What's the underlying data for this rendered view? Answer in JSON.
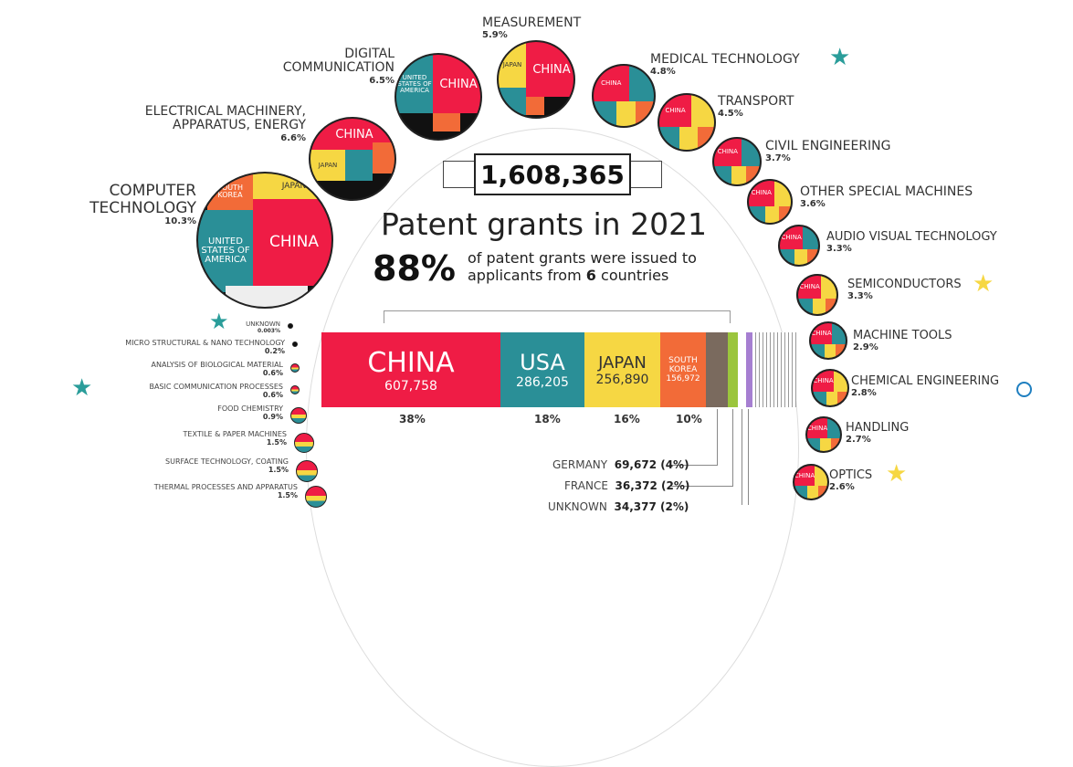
{
  "header": {
    "total": "1,608,365",
    "title": "Patent grants in 2021",
    "share": "88%",
    "subtitle_pre": "of patent grants were issued to",
    "subtitle_line2_pre": "applicants from",
    "subtitle_count": "6",
    "subtitle_post": "countries"
  },
  "bar": [
    {
      "name": "CHINA",
      "value": "607,758",
      "pct": "38%",
      "color": "#ef1c45"
    },
    {
      "name": "USA",
      "value": "286,205",
      "pct": "18%",
      "color": "#2a8f97"
    },
    {
      "name": "JAPAN",
      "value": "256,890",
      "pct": "16%",
      "color": "#f6d743"
    },
    {
      "name": "SOUTH KOREA",
      "value": "156,972",
      "pct": "10%",
      "color": "#f26b38"
    }
  ],
  "others": [
    {
      "name": "GERMANY",
      "value": "69,672 (4%)",
      "color": "#7a6a5e"
    },
    {
      "name": "FRANCE",
      "value": "36,372 (2%)",
      "color": "#9bc53d"
    },
    {
      "name": "UNKNOWN",
      "value": "34,377 (2%)",
      "color": "#a67fd1"
    }
  ],
  "categories_top": [
    {
      "name": "MEASUREMENT",
      "pct": "5.9%"
    },
    {
      "name": "DIGITAL COMMUNICATION",
      "line1": "DIGITAL",
      "line2": "COMMUNICATION",
      "pct": "6.5%"
    },
    {
      "name": "ELECTRICAL MACHINERY, APPARATUS, ENERGY",
      "line1": "ELECTRICAL MACHINERY,",
      "line2": "APPARATUS, ENERGY",
      "pct": "6.6%"
    },
    {
      "name": "COMPUTER TECHNOLOGY",
      "line1": "COMPUTER",
      "line2": "TECHNOLOGY",
      "pct": "10.3%"
    },
    {
      "name": "MEDICAL TECHNOLOGY",
      "pct": "4.8%"
    },
    {
      "name": "TRANSPORT",
      "pct": "4.5%"
    },
    {
      "name": "CIVIL ENGINEERING",
      "pct": "3.7%"
    },
    {
      "name": "OTHER SPECIAL MACHINES",
      "pct": "3.6%"
    },
    {
      "name": "AUDIO VISUAL TECHNOLOGY",
      "pct": "3.3%"
    },
    {
      "name": "SEMICONDUCTORS",
      "pct": "3.3%"
    },
    {
      "name": "MACHINE TOOLS",
      "pct": "2.9%"
    },
    {
      "name": "CHEMICAL ENGINEERING",
      "pct": "2.8%"
    },
    {
      "name": "HANDLING",
      "pct": "2.7%"
    },
    {
      "name": "OPTICS",
      "pct": "2.6%"
    }
  ],
  "categories_left": [
    {
      "name": "UNKNOWN",
      "pct": "0.003%"
    },
    {
      "name": "MICRO STRUCTURAL & NANO TECHNOLOGY",
      "pct": "0.2%"
    },
    {
      "name": "ANALYSIS OF BIOLOGICAL MATERIAL",
      "pct": "0.6%"
    },
    {
      "name": "BASIC COMMUNICATION PROCESSES",
      "pct": "0.6%"
    },
    {
      "name": "FOOD CHEMISTRY",
      "pct": "0.9%"
    },
    {
      "name": "TEXTILE & PAPER MACHINES",
      "pct": "1.5%"
    },
    {
      "name": "SURFACE TECHNOLOGY, COATING",
      "pct": "1.5%"
    },
    {
      "name": "THERMAL PROCESSES AND APPARATUS",
      "pct": "1.5%"
    }
  ],
  "circle_labels": {
    "china": "CHINA",
    "japan": "JAPAN",
    "usa": "UNITED STATES OF AMERICA",
    "korea": "SOUTH KOREA"
  },
  "colors": {
    "teal_star": "#2a9d9a",
    "yellow_star": "#f6d743"
  }
}
